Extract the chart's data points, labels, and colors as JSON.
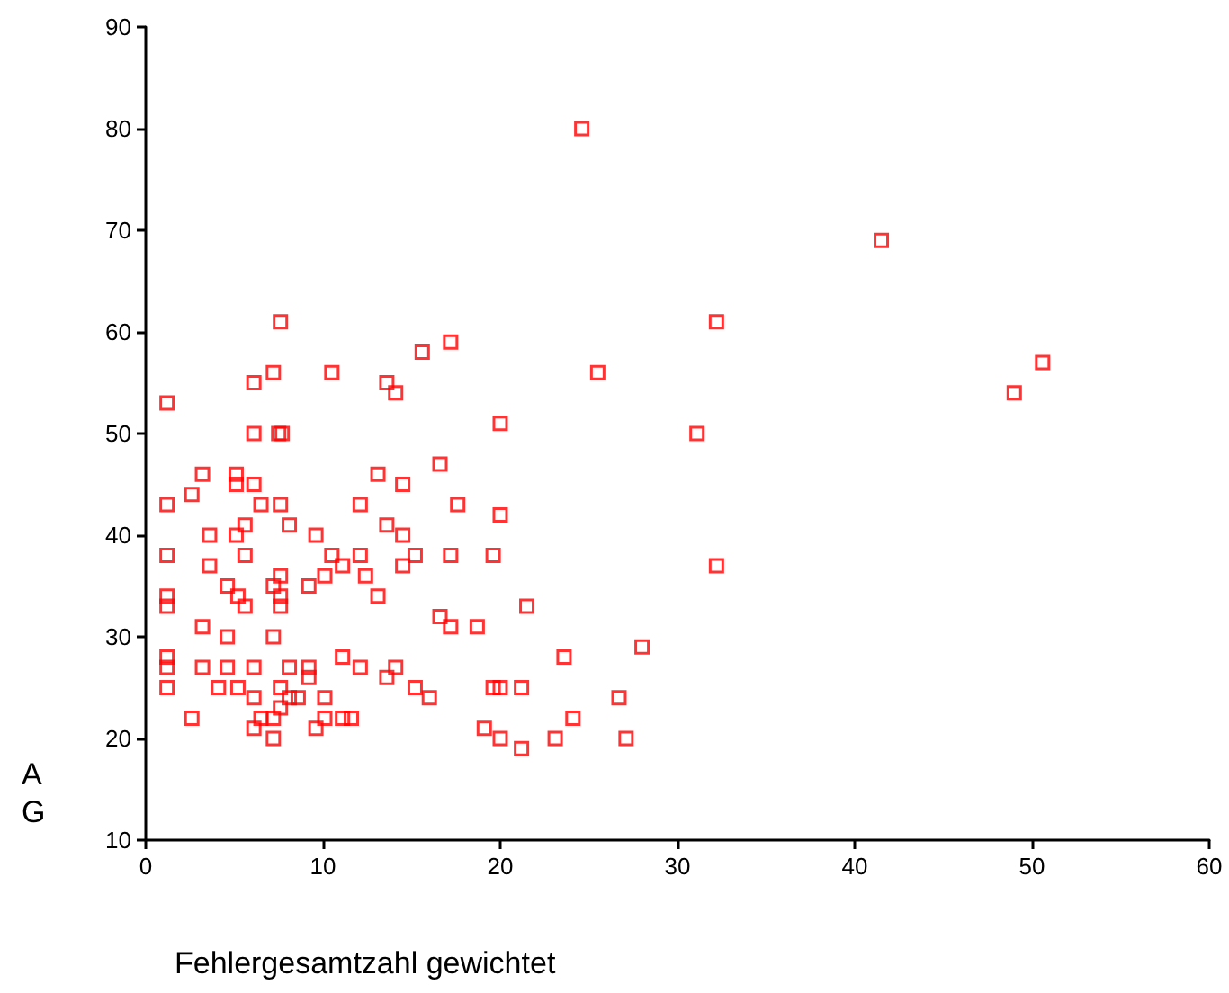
{
  "chart_data": {
    "type": "scatter",
    "xlabel": "Fehlergesamtzahl gewichtet",
    "ylabel": "AG",
    "xlim": [
      0,
      60
    ],
    "ylim": [
      10,
      90
    ],
    "xticks": [
      0,
      10,
      20,
      30,
      40,
      50,
      60
    ],
    "yticks": [
      10,
      20,
      30,
      40,
      50,
      60,
      70,
      80,
      90
    ],
    "marker": "square",
    "series": [
      {
        "color": "#ff0000",
        "x": [
          7.6,
          7.2,
          10.5,
          6.1,
          1.2,
          6.1,
          7.5,
          7.7,
          3.2,
          5.1,
          5.1,
          6.1,
          2.6,
          1.2,
          6.5,
          7.6,
          12.1,
          5.6,
          8.1,
          3.6,
          5.1,
          9.6,
          1.2,
          3.6,
          5.6,
          10.5,
          11.1,
          12.1,
          7.6,
          12.4,
          4.6,
          5.2,
          7.2,
          7.6,
          9.2,
          10.1,
          1.2,
          1.2,
          5.6,
          7.6,
          3.2,
          4.6,
          7.2,
          1.2,
          1.2,
          1.2,
          3.2,
          4.6,
          6.1,
          8.1,
          9.2,
          9.2,
          11.1,
          12.1,
          4.1,
          5.2,
          6.1,
          7.6,
          8.1,
          8.6,
          10.1,
          7.6,
          2.6,
          6.5,
          7.2,
          10.1,
          11.1,
          11.6,
          6.1,
          9.6,
          7.2,
          17.2,
          15.6,
          13.6,
          14.1,
          25.5,
          20.0,
          16.6,
          13.1,
          14.5,
          17.6,
          20.0,
          13.6,
          14.5,
          15.2,
          17.2,
          19.6,
          14.5,
          13.1,
          21.5,
          16.6,
          17.2,
          18.7,
          28.0,
          23.6,
          14.1,
          13.6,
          15.2,
          16.0,
          19.6,
          20.0,
          21.2,
          26.7,
          24.1,
          19.1,
          20.0,
          21.2,
          23.1,
          27.1,
          32.2,
          31.1,
          32.2,
          24.6,
          41.5,
          49.0,
          50.6
        ],
        "values": [
          61,
          56,
          56,
          55,
          53,
          50,
          50,
          50,
          46,
          46,
          45,
          45,
          44,
          43,
          43,
          43,
          43,
          41,
          41,
          40,
          40,
          40,
          38,
          37,
          38,
          38,
          37,
          38,
          36,
          36,
          35,
          34,
          35,
          34,
          35,
          36,
          34,
          33,
          33,
          33,
          31,
          30,
          30,
          28,
          27,
          25,
          27,
          27,
          27,
          27,
          27,
          26,
          28,
          27,
          25,
          25,
          24,
          25,
          24,
          24,
          24,
          23,
          22,
          22,
          22,
          22,
          22,
          22,
          21,
          21,
          20,
          59,
          58,
          55,
          54,
          56,
          51,
          47,
          46,
          45,
          43,
          42,
          41,
          40,
          38,
          38,
          38,
          37,
          34,
          33,
          32,
          31,
          31,
          29,
          28,
          27,
          26,
          25,
          24,
          25,
          25,
          25,
          24,
          22,
          21,
          20,
          19,
          20,
          20,
          61,
          50,
          37,
          80,
          69,
          54,
          57
        ]
      }
    ]
  }
}
